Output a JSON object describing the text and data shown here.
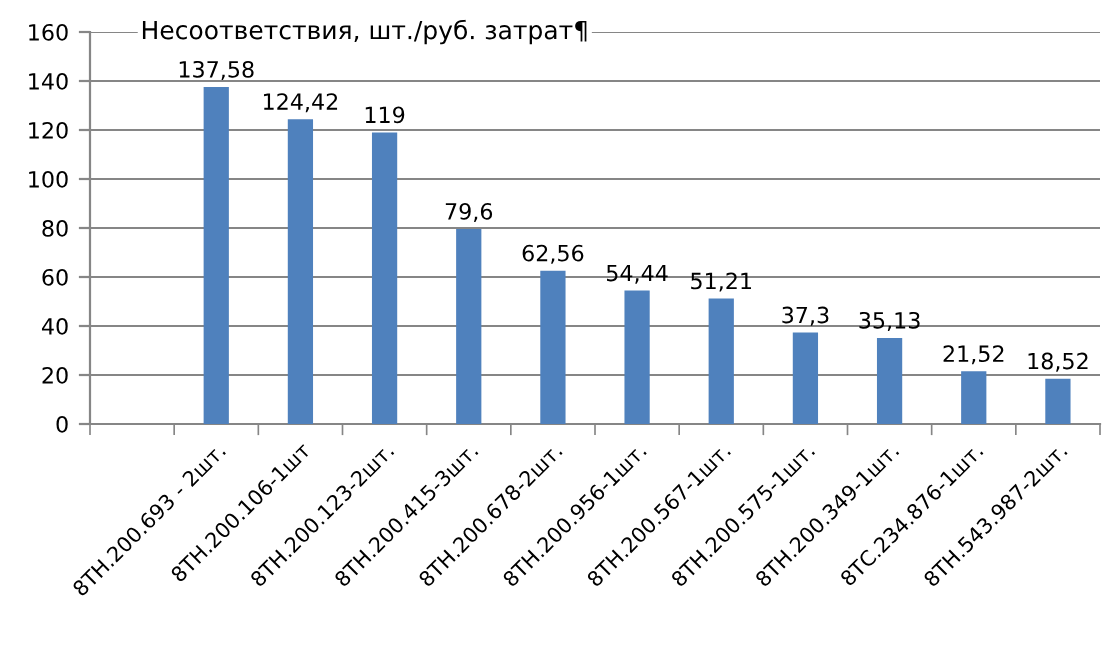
{
  "chart_data": {
    "type": "bar",
    "title": "Несоответствия, шт./руб. затрат¶",
    "categories": [
      null,
      "8ТН.200.693 - 2шт.",
      "8ТН.200.106-1шт",
      "8ТН.200.123-2шт.",
      "8ТН.200.415-3шт.",
      "8ТН.200.678-2шт.",
      "8ТН.200.956-1шт.",
      "8ТН.200.567-1шт.",
      "8ТН.200.575-1шт.",
      "8ТН.200.349-1шт.",
      "8ТС.234.876-1шт.",
      "8ТН.543.987-2шт."
    ],
    "values": [
      null,
      137.58,
      124.42,
      119,
      79.6,
      62.56,
      54.44,
      51.21,
      37.3,
      35.13,
      21.52,
      18.52
    ],
    "value_labels": [
      null,
      "137,58",
      "124,42",
      "119",
      "79,6",
      "62,56",
      "54,44",
      "51,21",
      "37,3",
      "35,13",
      "21,52",
      "18,52"
    ],
    "color": "#4f81bd",
    "ylim": [
      0,
      160
    ],
    "yticks": [
      0,
      20,
      40,
      60,
      80,
      100,
      120,
      140,
      160
    ],
    "grid": "y"
  }
}
